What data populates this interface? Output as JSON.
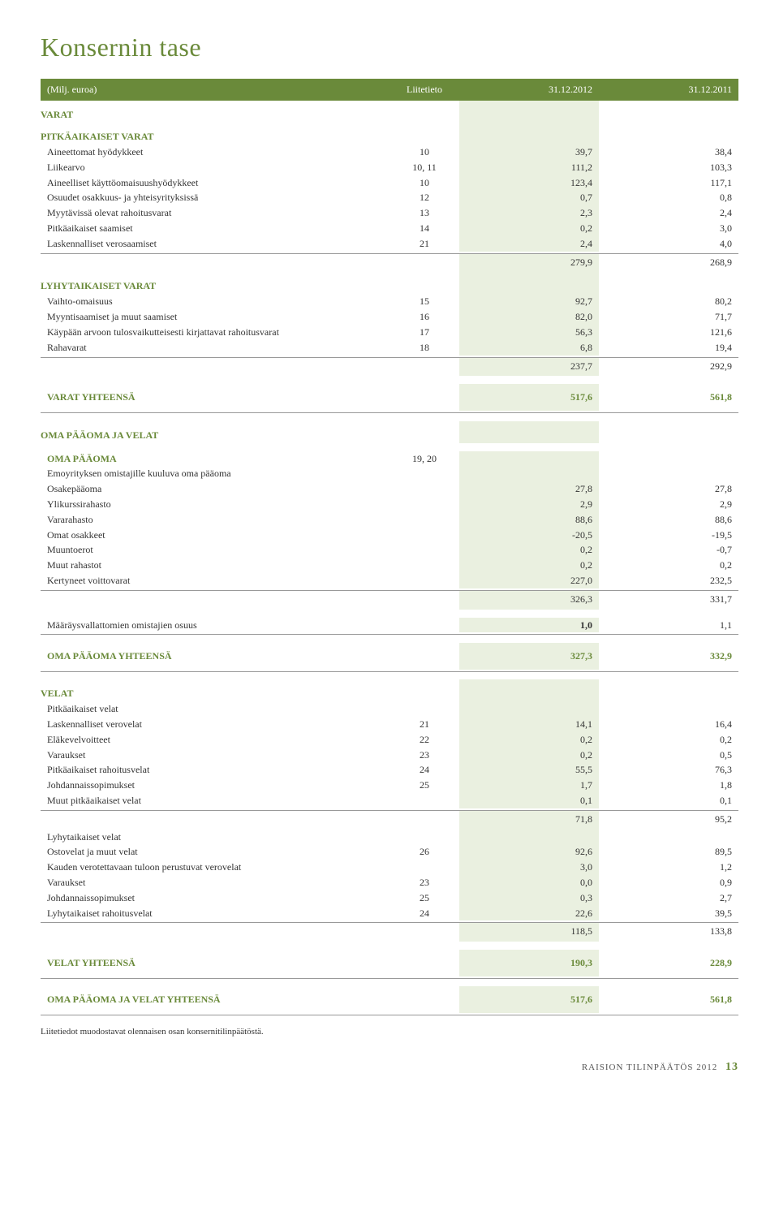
{
  "title": "Konsernin tase",
  "header": {
    "c0": "(Milj. euroa)",
    "c1": "Liitetieto",
    "c2": "31.12.2012",
    "c3": "31.12.2011"
  },
  "s1": {
    "title": "VARAT",
    "sub1": "PITKÄAIKAISET VARAT",
    "r": [
      {
        "l": "Aineettomat hyödykkeet",
        "n": "10",
        "v1": "39,7",
        "v2": "38,4"
      },
      {
        "l": "Liikearvo",
        "n": "10, 11",
        "v1": "111,2",
        "v2": "103,3"
      },
      {
        "l": "Aineelliset käyttöomaisuushyödykkeet",
        "n": "10",
        "v1": "123,4",
        "v2": "117,1"
      },
      {
        "l": "Osuudet osakkuus- ja yhteisyrityksissä",
        "n": "12",
        "v1": "0,7",
        "v2": "0,8"
      },
      {
        "l": "Myytävissä olevat rahoitusvarat",
        "n": "13",
        "v1": "2,3",
        "v2": "2,4"
      },
      {
        "l": "Pitkäaikaiset saamiset",
        "n": "14",
        "v1": "0,2",
        "v2": "3,0"
      },
      {
        "l": "Laskennalliset verosaamiset",
        "n": "21",
        "v1": "2,4",
        "v2": "4,0"
      }
    ],
    "st1": {
      "v1": "279,9",
      "v2": "268,9"
    },
    "sub2": "LYHYTAIKAISET VARAT",
    "r2": [
      {
        "l": "Vaihto-omaisuus",
        "n": "15",
        "v1": "92,7",
        "v2": "80,2"
      },
      {
        "l": "Myyntisaamiset ja muut saamiset",
        "n": "16",
        "v1": "82,0",
        "v2": "71,7"
      },
      {
        "l": "Käypään arvoon tulosvaikutteisesti kirjattavat rahoitusvarat",
        "n": "17",
        "v1": "56,3",
        "v2": "121,6"
      },
      {
        "l": "Rahavarat",
        "n": "18",
        "v1": "6,8",
        "v2": "19,4"
      }
    ],
    "st2": {
      "v1": "237,7",
      "v2": "292,9"
    },
    "total": {
      "l": "VARAT YHTEENSÄ",
      "v1": "517,6",
      "v2": "561,8"
    }
  },
  "s2": {
    "title": "OMA PÄÄOMA JA VELAT",
    "sub1": "OMA PÄÄOMA",
    "sub1n": "19, 20",
    "sub1b": "Emoyrityksen omistajille kuuluva oma pääoma",
    "r": [
      {
        "l": "Osakepääoma",
        "n": "",
        "v1": "27,8",
        "v2": "27,8"
      },
      {
        "l": "Ylikurssirahasto",
        "n": "",
        "v1": "2,9",
        "v2": "2,9"
      },
      {
        "l": "Vararahasto",
        "n": "",
        "v1": "88,6",
        "v2": "88,6"
      },
      {
        "l": "Omat osakkeet",
        "n": "",
        "v1": "-20,5",
        "v2": "-19,5"
      },
      {
        "l": "Muuntoerot",
        "n": "",
        "v1": "0,2",
        "v2": "-0,7"
      },
      {
        "l": "Muut rahastot",
        "n": "",
        "v1": "0,2",
        "v2": "0,2"
      },
      {
        "l": "Kertyneet voittovarat",
        "n": "",
        "v1": "227,0",
        "v2": "232,5"
      }
    ],
    "st1": {
      "v1": "326,3",
      "v2": "331,7"
    },
    "minority": {
      "l": "Määräysvallattomien omistajien osuus",
      "v1": "1,0",
      "v2": "1,1"
    },
    "total_equity": {
      "l": "OMA PÄÄOMA YHTEENSÄ",
      "v1": "327,3",
      "v2": "332,9"
    },
    "sub2": "VELAT",
    "sub2a": "Pitkäaikaiset velat",
    "r2": [
      {
        "l": "Laskennalliset verovelat",
        "n": "21",
        "v1": "14,1",
        "v2": "16,4"
      },
      {
        "l": "Eläkevelvoitteet",
        "n": "22",
        "v1": "0,2",
        "v2": "0,2"
      },
      {
        "l": "Varaukset",
        "n": "23",
        "v1": "0,2",
        "v2": "0,5"
      },
      {
        "l": "Pitkäaikaiset rahoitusvelat",
        "n": "24",
        "v1": "55,5",
        "v2": "76,3"
      },
      {
        "l": "Johdannaissopimukset",
        "n": "25",
        "v1": "1,7",
        "v2": "1,8"
      },
      {
        "l": "Muut pitkäaikaiset velat",
        "n": "",
        "v1": "0,1",
        "v2": "0,1"
      }
    ],
    "st2": {
      "v1": "71,8",
      "v2": "95,2"
    },
    "sub2b": "Lyhytaikaiset velat",
    "r3": [
      {
        "l": "Ostovelat ja muut velat",
        "n": "26",
        "v1": "92,6",
        "v2": "89,5"
      },
      {
        "l": "Kauden verotettavaan tuloon perustuvat verovelat",
        "n": "",
        "v1": "3,0",
        "v2": "1,2"
      },
      {
        "l": "Varaukset",
        "n": "23",
        "v1": "0,0",
        "v2": "0,9"
      },
      {
        "l": "Johdannaissopimukset",
        "n": "25",
        "v1": "0,3",
        "v2": "2,7"
      },
      {
        "l": "Lyhytaikaiset rahoitusvelat",
        "n": "24",
        "v1": "22,6",
        "v2": "39,5"
      }
    ],
    "st3": {
      "v1": "118,5",
      "v2": "133,8"
    },
    "total_liab": {
      "l": "VELAT YHTEENSÄ",
      "v1": "190,3",
      "v2": "228,9"
    },
    "grand": {
      "l": "OMA PÄÄOMA JA VELAT YHTEENSÄ",
      "v1": "517,6",
      "v2": "561,8"
    }
  },
  "footnote": "Liitetiedot muodostavat olennaisen osan konsernitilinpäätöstä.",
  "footer": {
    "text": "RAISION TILINPÄÄTÖS 2012",
    "page": "13"
  },
  "style": {
    "accent": "#6a8a3a",
    "highlight_bg": "#eaf0e0",
    "text": "#333333",
    "divider": "#999999"
  }
}
